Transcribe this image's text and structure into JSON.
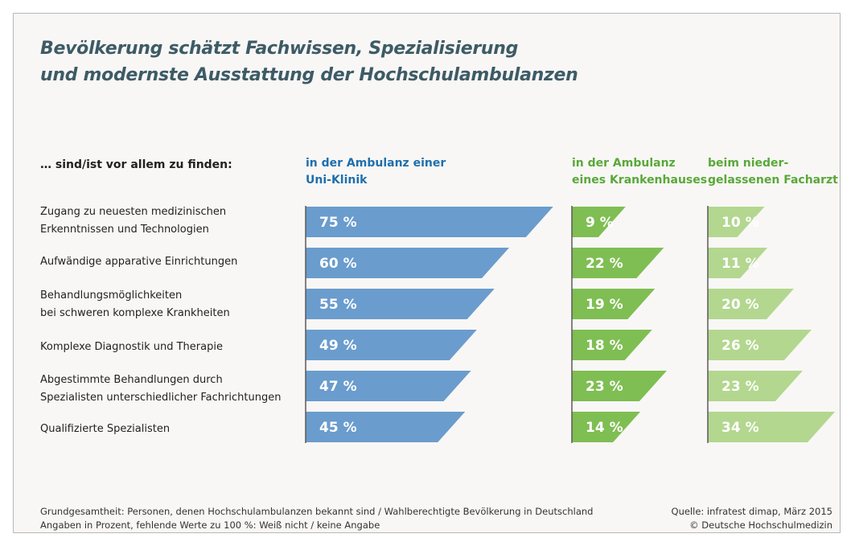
{
  "title_lines": [
    "Bevölkerung schätzt Fachwissen, Spezialisierung",
    "und modernste Ausstattung der Hochschulambulanzen"
  ],
  "row_header": "… sind/ist vor allem zu finden:",
  "colors": {
    "uni": "#6a9ccd",
    "krankenhaus": "#7fbe53",
    "facharzt": "#b3d78f",
    "uni_header": "#1f6fae",
    "green_header": "#5aa83a"
  },
  "chart_data": {
    "type": "bar",
    "categories": [
      "Zugang zu neuesten medizinischen Erkenntnissen und Technologien",
      "Aufwändige apparative Einrichtungen",
      "Behandlungsmöglichkeiten bei schweren komplexe Krankheiten",
      "Komplexe Diagnostik und Therapie",
      "Abgestimmte Behandlungen durch Spezialisten unterschiedlicher Fachrichtungen",
      "Qualifizierte Spezialisten"
    ],
    "category_lines": [
      [
        "Zugang zu neuesten medizinischen",
        "Erkenntnissen und Technologien"
      ],
      [
        "Aufwändige apparative Einrichtungen"
      ],
      [
        "Behandlungsmöglichkeiten",
        "bei schweren komplexe Krankheiten"
      ],
      [
        "Komplexe Diagnostik und Therapie"
      ],
      [
        "Abgestimmte Behandlungen durch",
        "Spezialisten unterschiedlicher Fachrichtungen"
      ],
      [
        "Qualifizierte Spezialisten"
      ]
    ],
    "unit": "%",
    "series": [
      {
        "name": "in der Ambulanz einer Uni-Klinik",
        "header_lines": [
          "in der Ambulanz einer",
          "Uni-Klinik"
        ],
        "values": [
          75,
          60,
          55,
          49,
          47,
          45
        ],
        "labels": [
          "75 %",
          "60 %",
          "55 %",
          "49 %",
          "47 %",
          "45 %"
        ]
      },
      {
        "name": "in der Ambulanz eines Krankenhauses",
        "header_lines": [
          "in der Ambulanz",
          "eines Krankenhauses"
        ],
        "values": [
          9,
          22,
          19,
          18,
          23,
          14
        ],
        "labels": [
          "9 %",
          "22 %",
          "19 %",
          "18 %",
          "23 %",
          "14 %"
        ]
      },
      {
        "name": "beim niedergelassenen Facharzt",
        "header_lines": [
          "beim nieder-",
          "gelassenen Facharzt"
        ],
        "values": [
          10,
          11,
          20,
          26,
          23,
          34
        ],
        "labels": [
          "10 %",
          "11 %",
          "20 %",
          "26 %",
          "23 %",
          "34 %"
        ]
      }
    ]
  },
  "footnote_lines": [
    "Grundgesamtheit: Personen, denen Hochschulambulanzen bekannt sind / Wahlberechtigte Bevölkerung in Deutschland",
    "Angaben in Prozent, fehlende Werte zu 100 %: Weiß nicht / keine Angabe"
  ],
  "source_lines": [
    "Quelle: infratest dimap, März 2015",
    "© Deutsche Hochschulmedizin"
  ]
}
